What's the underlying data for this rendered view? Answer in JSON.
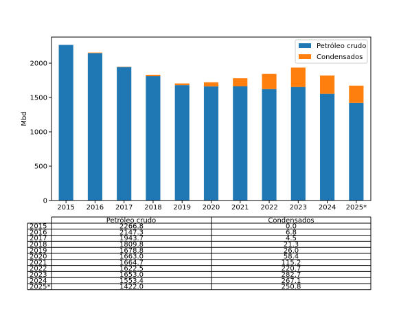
{
  "chart_data": {
    "type": "bar",
    "stacked": true,
    "categories": [
      "2015",
      "2016",
      "2017",
      "2018",
      "2019",
      "2020",
      "2021",
      "2022",
      "2023",
      "2024",
      "2025*"
    ],
    "series": [
      {
        "name": "Petróleo crudo",
        "color": "#1f77b4",
        "values": [
          2266.8,
          2147.3,
          1943.7,
          1809.8,
          1678.8,
          1663.0,
          1664.7,
          1622.5,
          1653.0,
          1553.4,
          1422.0
        ],
        "labels": [
          "2266.8",
          "2147.3",
          "1943.7",
          "1809.8",
          "1678.8",
          "1663.0",
          "1664.7",
          "1622.5",
          "1653.0",
          "1553.4",
          "1422.0"
        ]
      },
      {
        "name": "Condensados",
        "color": "#ff7f0e",
        "values": [
          0.0,
          6.8,
          4.5,
          21.3,
          26.0,
          58.4,
          115.2,
          220.7,
          282.7,
          267.1,
          250.8
        ],
        "labels": [
          "0.0",
          "6.8",
          "4.5",
          "21.3",
          "26.0",
          "58.4",
          "115.2",
          "220.7",
          "282.7",
          "267.1",
          "250.8"
        ]
      }
    ],
    "ylabel": "Mbd",
    "ylim": [
      0,
      2380
    ],
    "yticks": [
      0,
      500,
      1000,
      1500,
      2000
    ],
    "legend": "top-right",
    "grid": false
  }
}
